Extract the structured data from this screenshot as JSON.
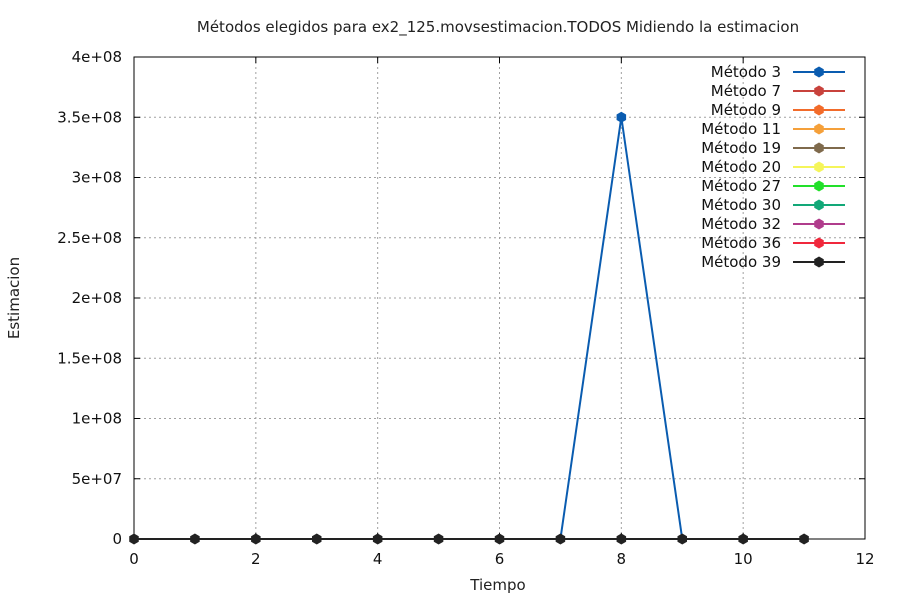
{
  "chart_data": {
    "type": "line",
    "title": "Métodos elegidos para ex2_125.movsestimacion.TODOS Midiendo la estimacion",
    "xlabel": "Tiempo",
    "ylabel": "Estimacion",
    "xlim": [
      0,
      12
    ],
    "ylim": [
      0,
      400000000
    ],
    "xticks": [
      0,
      2,
      4,
      6,
      8,
      10,
      12
    ],
    "yticks": [
      0,
      50000000,
      100000000,
      150000000,
      200000000,
      250000000,
      300000000,
      350000000,
      400000000
    ],
    "xtick_labels": [
      "0",
      "2",
      "4",
      "6",
      "8",
      "10",
      "12"
    ],
    "ytick_labels": [
      "0",
      "5e+07",
      "1e+08",
      "1.5e+08",
      "2e+08",
      "2.5e+08",
      "3e+08",
      "3.5e+08",
      "4e+08"
    ],
    "grid": true,
    "legend_position": "top-right",
    "x": [
      0,
      1,
      2,
      3,
      4,
      5,
      6,
      7,
      8,
      9,
      10,
      11
    ],
    "series": [
      {
        "name": "Método 3",
        "color": "#0a5cb0",
        "values": [
          null,
          null,
          null,
          null,
          null,
          null,
          null,
          0,
          350000000,
          0,
          null,
          null
        ]
      },
      {
        "name": "Método 7",
        "color": "#c8423c",
        "values": [
          null,
          null,
          null,
          null,
          null,
          null,
          null,
          null,
          null,
          null,
          null,
          null
        ]
      },
      {
        "name": "Método 9",
        "color": "#f26b2a",
        "values": [
          null,
          null,
          null,
          null,
          null,
          null,
          null,
          null,
          null,
          null,
          null,
          null
        ]
      },
      {
        "name": "Método 11",
        "color": "#f5a03a",
        "values": [
          null,
          null,
          null,
          null,
          null,
          null,
          null,
          null,
          null,
          null,
          null,
          null
        ]
      },
      {
        "name": "Método 19",
        "color": "#7f6a4c",
        "values": [
          null,
          null,
          null,
          null,
          null,
          null,
          null,
          null,
          null,
          null,
          null,
          null
        ]
      },
      {
        "name": "Método 20",
        "color": "#f5f55a",
        "values": [
          null,
          null,
          null,
          null,
          null,
          null,
          null,
          null,
          null,
          null,
          null,
          null
        ]
      },
      {
        "name": "Método 27",
        "color": "#22e02a",
        "values": [
          null,
          null,
          null,
          null,
          null,
          null,
          null,
          null,
          null,
          null,
          null,
          null
        ]
      },
      {
        "name": "Método 30",
        "color": "#12a878",
        "values": [
          null,
          null,
          null,
          null,
          null,
          null,
          null,
          null,
          null,
          null,
          null,
          null
        ]
      },
      {
        "name": "Método 32",
        "color": "#b03c8c",
        "values": [
          null,
          null,
          null,
          null,
          null,
          null,
          null,
          null,
          null,
          null,
          null,
          null
        ]
      },
      {
        "name": "Método 36",
        "color": "#f0283c",
        "values": [
          null,
          null,
          null,
          null,
          null,
          null,
          null,
          null,
          null,
          null,
          null,
          null
        ]
      },
      {
        "name": "Método 39",
        "color": "#222222",
        "values": [
          0,
          0,
          0,
          0,
          0,
          0,
          0,
          0,
          0,
          0,
          0,
          0
        ]
      }
    ]
  }
}
